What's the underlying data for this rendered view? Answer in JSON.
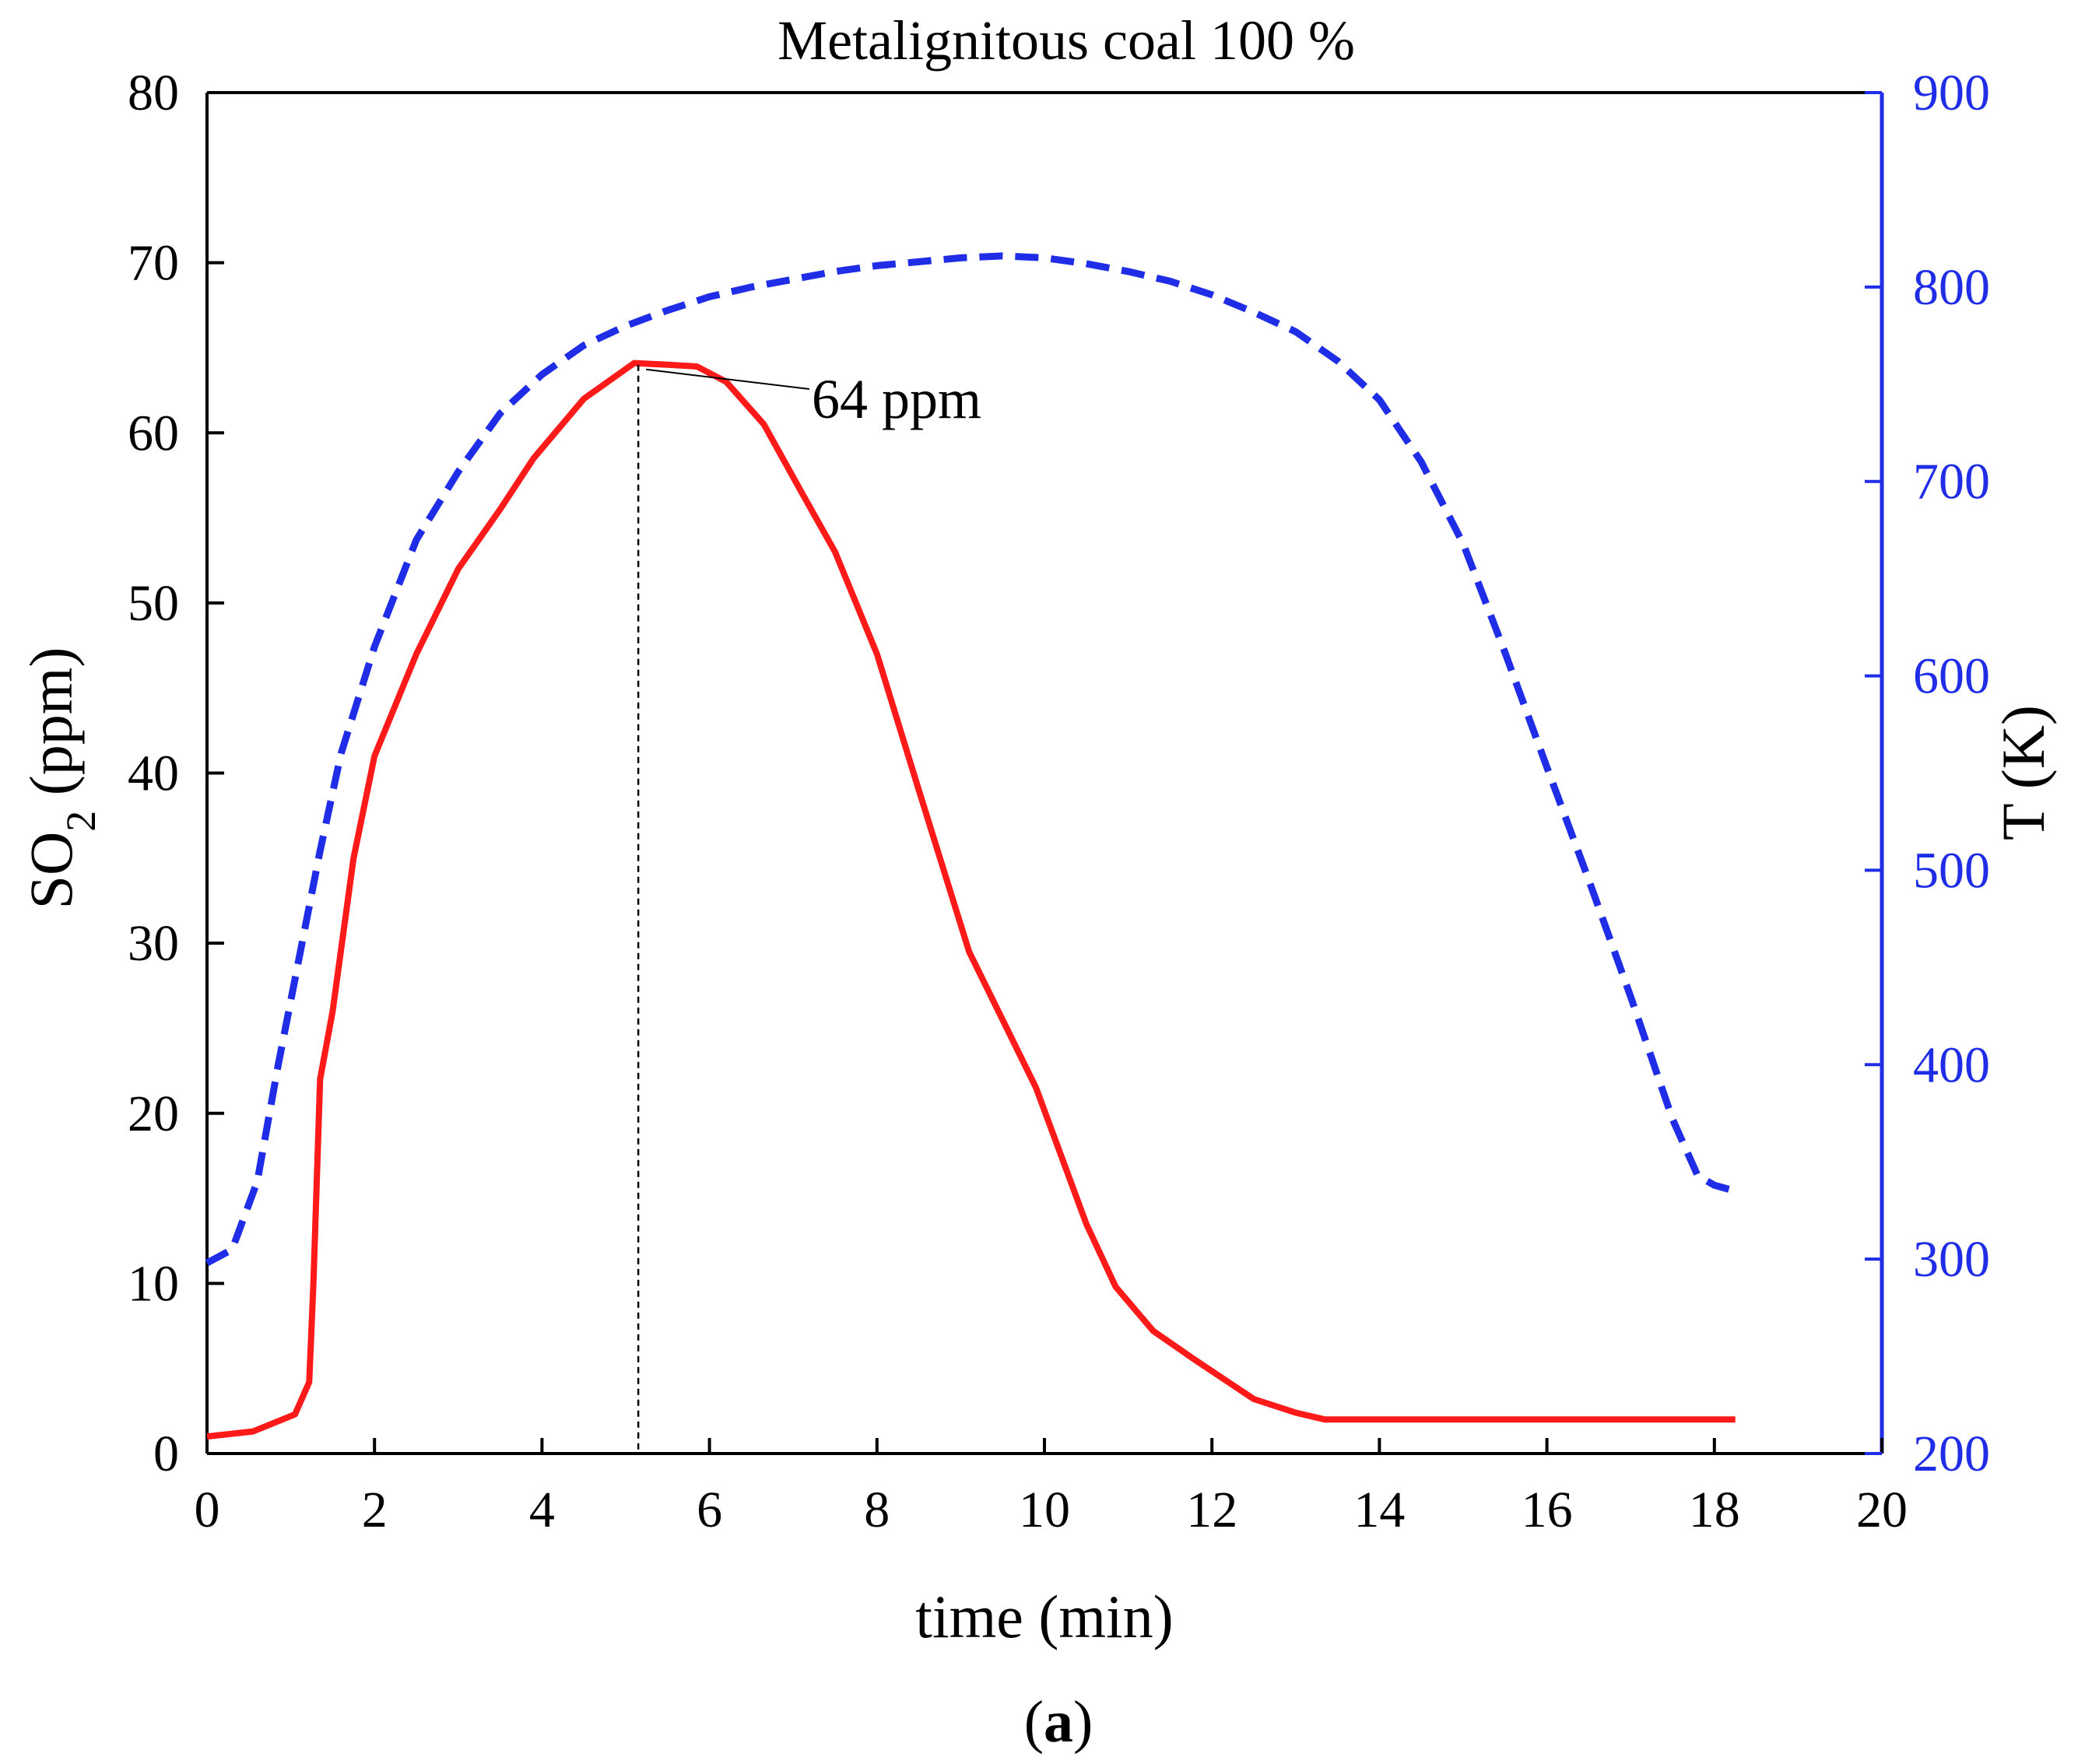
{
  "chart_data": {
    "type": "line",
    "title": "Metalignitous coal 100 %",
    "xlabel": "time (min)",
    "ylabel_left": {
      "main": "SO",
      "sub": "2",
      "rest": " (ppm)"
    },
    "ylabel_right": "T (K)",
    "xlim": [
      0,
      20
    ],
    "ylim_left": [
      0,
      80
    ],
    "ylim_right": [
      200,
      900
    ],
    "x_ticks": [
      "0",
      "2",
      "4",
      "6",
      "8",
      "10",
      "12",
      "14",
      "16",
      "18",
      "20"
    ],
    "y_left_ticks": [
      "0",
      "10",
      "20",
      "30",
      "40",
      "50",
      "60",
      "70",
      "80"
    ],
    "y_right_ticks": [
      "200",
      "300",
      "400",
      "500",
      "600",
      "700",
      "800",
      "900"
    ],
    "series": [
      {
        "name": "SO2",
        "axis": "left",
        "color": "#ff1a1a",
        "style": "solid",
        "x": [
          0,
          0.55,
          1.05,
          1.22,
          1.27,
          1.35,
          1.5,
          1.75,
          2.0,
          2.5,
          3.0,
          3.5,
          3.9,
          4.5,
          5.1,
          5.5,
          5.85,
          6.2,
          6.65,
          7.1,
          7.5,
          8.0,
          8.5,
          9.1,
          9.5,
          9.9,
          10.2,
          10.5,
          10.85,
          11.3,
          11.8,
          12.5,
          13.0,
          13.35,
          14.0,
          16.0,
          18.25
        ],
        "y": [
          1.0,
          1.3,
          2.3,
          4.2,
          10.0,
          22.0,
          26.0,
          35.0,
          41.0,
          47.0,
          52.0,
          55.5,
          58.5,
          62.0,
          64.1,
          64.0,
          63.9,
          63.0,
          60.5,
          56.5,
          53.0,
          47.0,
          39.0,
          29.5,
          25.5,
          21.5,
          17.5,
          13.5,
          9.8,
          7.2,
          5.5,
          3.2,
          2.4,
          2.0,
          2.0,
          2.0,
          2.0
        ]
      },
      {
        "name": "T",
        "axis": "right",
        "color": "#1f2ee6",
        "style": "dashed",
        "x": [
          0,
          0.3,
          0.6,
          0.85,
          1.1,
          1.35,
          1.6,
          2.0,
          2.5,
          3.0,
          3.5,
          4.0,
          4.5,
          5.0,
          5.5,
          6.0,
          6.5,
          7.0,
          7.5,
          8.0,
          8.5,
          9.0,
          9.5,
          10.0,
          10.5,
          11.0,
          11.5,
          12.0,
          12.5,
          13.0,
          13.5,
          14.0,
          14.5,
          15.0,
          15.5,
          16.0,
          16.5,
          17.0,
          17.5,
          17.8,
          18.0,
          18.25
        ],
        "y": [
          298,
          305,
          340,
          400,
          455,
          510,
          560,
          615,
          670,
          705,
          735,
          755,
          770,
          780,
          788,
          795,
          800,
          804,
          808,
          811,
          813,
          815,
          816,
          815,
          812,
          808,
          803,
          796,
          787,
          777,
          762,
          742,
          710,
          668,
          612,
          553,
          495,
          435,
          372,
          343,
          338,
          335
        ]
      }
    ],
    "annotation": {
      "text": "64 ppm",
      "x": 5.15,
      "y": 64
    },
    "panel_label": {
      "open": "(",
      "letter": "a",
      "close": ")"
    }
  }
}
